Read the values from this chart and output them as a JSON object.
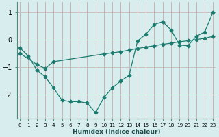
{
  "xlabel": "Humidex (Indice chaleur)",
  "background_color": "#d8eeee",
  "line_color": "#1a7a6e",
  "grid_color_v": "#c8a8a8",
  "grid_color_h": "#c8b8b8",
  "x_ticks": [
    0,
    1,
    2,
    3,
    4,
    5,
    6,
    7,
    8,
    9,
    10,
    11,
    12,
    13,
    14,
    15,
    16,
    17,
    18,
    19,
    20,
    21,
    22,
    23
  ],
  "y_ticks": [
    -2,
    -1,
    0,
    1
  ],
  "ylim": [
    -2.85,
    1.35
  ],
  "xlim": [
    -0.3,
    23.3
  ],
  "curve1_x": [
    0,
    1,
    2,
    3,
    4,
    5,
    6,
    7,
    8,
    9,
    10,
    11,
    12,
    13,
    14,
    15,
    16,
    17,
    18,
    19,
    20,
    21,
    22,
    23
  ],
  "curve1_y": [
    -0.3,
    -0.6,
    -1.1,
    -1.35,
    -1.75,
    -2.2,
    -2.25,
    -2.25,
    -2.3,
    -2.65,
    -2.1,
    -1.75,
    -1.5,
    -1.3,
    -0.05,
    0.2,
    0.55,
    0.65,
    0.35,
    -0.2,
    -0.22,
    0.12,
    0.28,
    1.0
  ],
  "curve2_x": [
    0,
    2,
    3,
    4,
    10,
    11,
    12,
    13,
    14,
    15,
    16,
    17,
    18,
    19,
    20,
    21,
    22,
    23
  ],
  "curve2_y": [
    -0.5,
    -0.9,
    -1.05,
    -0.8,
    -0.52,
    -0.48,
    -0.44,
    -0.38,
    -0.32,
    -0.27,
    -0.22,
    -0.17,
    -0.13,
    -0.08,
    -0.04,
    0.0,
    0.05,
    0.12
  ]
}
